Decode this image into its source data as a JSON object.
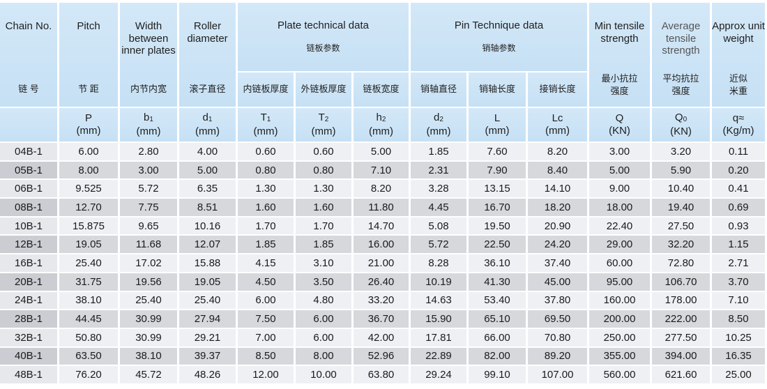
{
  "header": {
    "chain_no": {
      "en": "Chain No.",
      "zh": "链 号",
      "sym": "",
      "unit": ""
    },
    "pitch": {
      "en": "Pitch",
      "zh": "节 距",
      "sym": "P",
      "unit": "(mm)"
    },
    "width": {
      "en": "Width between inner plates",
      "zh": "内节内宽",
      "sym": "b1",
      "unit": "(mm)"
    },
    "roller": {
      "en": "Roller diameter",
      "zh": "滚子直径",
      "sym": "d1",
      "unit": "(mm)"
    },
    "plate_group": {
      "en": "Plate technical data",
      "zh": "链板参数"
    },
    "plate_inner": {
      "zh": "内链板厚度",
      "sym": "T1",
      "unit": "(mm)"
    },
    "plate_outer": {
      "zh": "外链板厚度",
      "sym": "T2",
      "unit": "(mm)"
    },
    "plate_width": {
      "zh": "链板宽度",
      "sym": "h2",
      "unit": "(mm)"
    },
    "pin_group": {
      "en": "Pin Technique data",
      "zh": "销轴参数"
    },
    "pin_dia": {
      "zh": "销轴直径",
      "sym": "d2",
      "unit": "(mm)"
    },
    "pin_len": {
      "zh": "销轴长度",
      "sym": "L",
      "unit": "(mm)"
    },
    "pin_conn": {
      "zh": "接销长度",
      "sym": "Lc",
      "unit": "(mm)"
    },
    "min_tensile": {
      "en": "Min tensile strength",
      "zh": "最小抗拉强度",
      "sym": "Q",
      "unit": "(KN)"
    },
    "avg_tensile": {
      "en": "Average tensile strength",
      "zh": "平均抗拉强度",
      "sym": "Q0",
      "unit": "(KN)"
    },
    "weight": {
      "en": "Approx unit weight",
      "zh": "近似米重",
      "sym": "q≈",
      "unit": "(Kg/m)"
    }
  },
  "rows": [
    [
      "04B-1",
      "6.00",
      "2.80",
      "4.00",
      "0.60",
      "0.60",
      "5.00",
      "1.85",
      "7.60",
      "8.20",
      "3.00",
      "3.20",
      "0.11"
    ],
    [
      "05B-1",
      "8.00",
      "3.00",
      "5.00",
      "0.80",
      "0.80",
      "7.10",
      "2.31",
      "7.90",
      "8.40",
      "5.00",
      "5.90",
      "0.20"
    ],
    [
      "06B-1",
      "9.525",
      "5.72",
      "6.35",
      "1.30",
      "1.30",
      "8.20",
      "3.28",
      "13.15",
      "14.10",
      "9.00",
      "10.40",
      "0.41"
    ],
    [
      "08B-1",
      "12.70",
      "7.75",
      "8.51",
      "1.60",
      "1.60",
      "11.80",
      "4.45",
      "16.70",
      "18.20",
      "18.00",
      "19.40",
      "0.69"
    ],
    [
      "10B-1",
      "15.875",
      "9.65",
      "10.16",
      "1.70",
      "1.70",
      "14.70",
      "5.08",
      "19.50",
      "20.90",
      "22.40",
      "27.50",
      "0.93"
    ],
    [
      "12B-1",
      "19.05",
      "11.68",
      "12.07",
      "1.85",
      "1.85",
      "16.00",
      "5.72",
      "22.50",
      "24.20",
      "29.00",
      "32.20",
      "1.15"
    ],
    [
      "16B-1",
      "25.40",
      "17.02",
      "15.88",
      "4.15",
      "3.10",
      "21.00",
      "8.28",
      "36.10",
      "37.40",
      "60.00",
      "72.80",
      "2.71"
    ],
    [
      "20B-1",
      "31.75",
      "19.56",
      "19.05",
      "4.50",
      "3.50",
      "26.40",
      "10.19",
      "41.30",
      "45.00",
      "95.00",
      "106.70",
      "3.70"
    ],
    [
      "24B-1",
      "38.10",
      "25.40",
      "25.40",
      "6.00",
      "4.80",
      "33.20",
      "14.63",
      "53.40",
      "37.80",
      "160.00",
      "178.00",
      "7.10"
    ],
    [
      "28B-1",
      "44.45",
      "30.99",
      "27.94",
      "7.50",
      "6.00",
      "36.70",
      "15.90",
      "65.10",
      "69.50",
      "200.00",
      "222.00",
      "8.50"
    ],
    [
      "32B-1",
      "50.80",
      "30.99",
      "29.21",
      "7.00",
      "6.00",
      "42.00",
      "17.81",
      "66.00",
      "70.80",
      "250.00",
      "277.50",
      "10.25"
    ],
    [
      "40B-1",
      "63.50",
      "38.10",
      "39.37",
      "8.50",
      "8.00",
      "52.96",
      "22.89",
      "82.00",
      "89.20",
      "355.00",
      "394.00",
      "16.35"
    ],
    [
      "48B-1",
      "76.20",
      "45.72",
      "48.26",
      "12.00",
      "10.00",
      "63.80",
      "29.24",
      "99.10",
      "107.00",
      "560.00",
      "621.60",
      "25.00"
    ]
  ],
  "colors": {
    "header_bg": "#cde4f6",
    "row_light": "#eef0f3",
    "row_dark": "#d6d8dc"
  }
}
